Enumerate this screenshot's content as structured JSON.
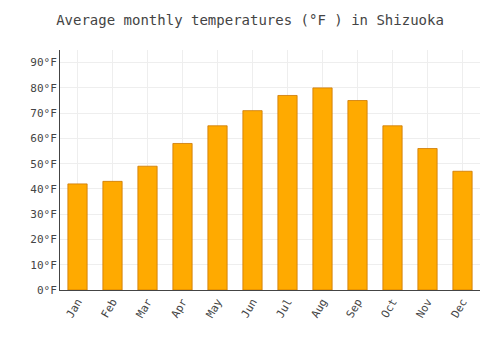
{
  "chart_data": {
    "type": "bar",
    "title": "Average monthly temperatures (°F ) in Shizuoka",
    "categories": [
      "Jan",
      "Feb",
      "Mar",
      "Apr",
      "May",
      "Jun",
      "Jul",
      "Aug",
      "Sep",
      "Oct",
      "Nov",
      "Dec"
    ],
    "values": [
      42,
      43,
      49,
      58,
      65,
      71,
      77,
      80,
      75,
      65,
      56,
      47
    ],
    "color": "#FFAA00",
    "ylim": [
      0,
      95
    ],
    "yticks": [
      {
        "value": 0,
        "label": "0°F"
      },
      {
        "value": 10,
        "label": "10°F"
      },
      {
        "value": 20,
        "label": "20°F"
      },
      {
        "value": 30,
        "label": "30°F"
      },
      {
        "value": 40,
        "label": "40°F"
      },
      {
        "value": 50,
        "label": "50°F"
      },
      {
        "value": 60,
        "label": "60°F"
      },
      {
        "value": 70,
        "label": "70°F"
      },
      {
        "value": 80,
        "label": "80°F"
      },
      {
        "value": 90,
        "label": "90°F"
      }
    ],
    "grid": true
  }
}
